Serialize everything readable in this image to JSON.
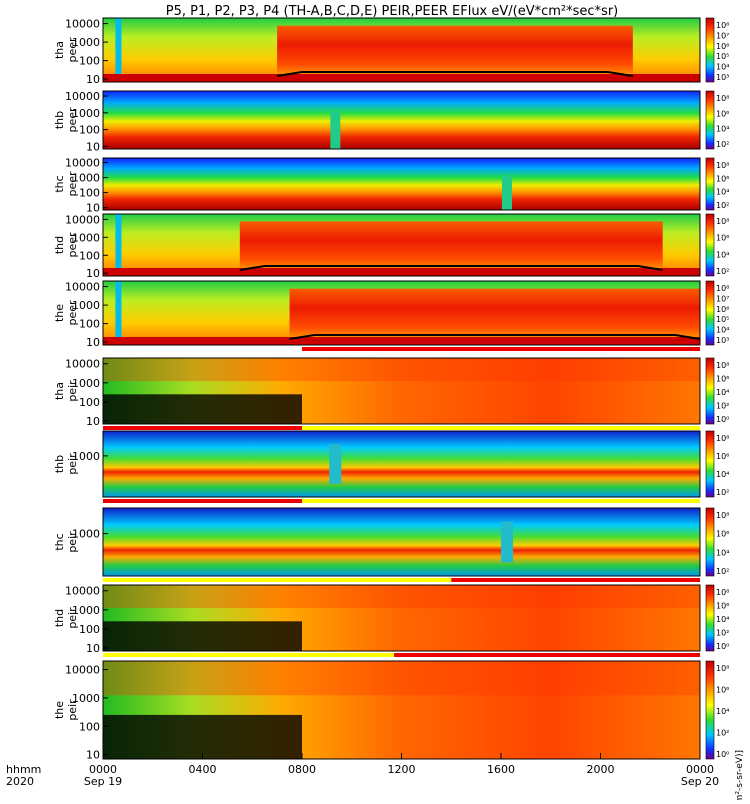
{
  "title": "P5, P1, P2, P3, P4 (TH-A,B,C,D,E) PEIR,PEER EFlux eV/(eV*cm²*sec*sr)",
  "colorbar_unit_label": "[eV/(cm²-s-sr-eV)]",
  "time_axis": {
    "row_label_1": "hhmm",
    "row_label_2": "2020",
    "ticks": [
      {
        "hour": 0,
        "label": "0000",
        "date": "Sep 19"
      },
      {
        "hour": 4,
        "label": "0400",
        "date": ""
      },
      {
        "hour": 8,
        "label": "0800",
        "date": ""
      },
      {
        "hour": 12,
        "label": "1200",
        "date": ""
      },
      {
        "hour": 16,
        "label": "1600",
        "date": ""
      },
      {
        "hour": 20,
        "label": "2000",
        "date": ""
      },
      {
        "hour": 24,
        "label": "0000",
        "date": "Sep 20"
      }
    ],
    "range_hours": [
      0,
      24
    ]
  },
  "chart_data": {
    "type": "heatmap",
    "title": "P5, P1, P2, P3, P4 (TH-A,B,C,D,E) PEIR,PEER EFlux eV/(eV*cm²*sec*sr)",
    "x_unit": "hours since 2020-09-19 00:00 UT",
    "xlim": [
      0,
      24
    ],
    "color_scale": "log",
    "colorbar_label": "[eV/(cm²-s-sr-eV)]",
    "panels": [
      {
        "label_1": "tha",
        "label_2": "peer",
        "yscale": "log",
        "ylim": [
          7,
          20000
        ],
        "yticks": [
          "10",
          "100",
          "1000",
          "10000"
        ],
        "cbar_ticks": [
          "10⁸",
          "10⁷",
          "10⁶",
          "10⁵",
          "10⁴",
          "10³"
        ],
        "pattern": "plasma_sheet_electrons",
        "bright_window_hours": [
          7,
          21.3
        ],
        "mode_bar": "none"
      },
      {
        "label_1": "thb",
        "label_2": "peer",
        "yscale": "log",
        "ylim": [
          7,
          20000
        ],
        "yticks": [
          "10",
          "100",
          "1000",
          "10000"
        ],
        "cbar_ticks": [
          "10⁸",
          "10⁶",
          "10⁴",
          "10²"
        ],
        "pattern": "solar_wind_electrons",
        "notch_hour": 9.3,
        "mode_bar": "none"
      },
      {
        "label_1": "thc",
        "label_2": "peer",
        "yscale": "log",
        "ylim": [
          7,
          20000
        ],
        "yticks": [
          "10",
          "100",
          "1000",
          "10000"
        ],
        "cbar_ticks": [
          "10⁸",
          "10⁶",
          "10⁴",
          "10²"
        ],
        "pattern": "solar_wind_electrons",
        "notch_hour": 16.2,
        "mode_bar": "none"
      },
      {
        "label_1": "thd",
        "label_2": "peer",
        "yscale": "log",
        "ylim": [
          7,
          20000
        ],
        "yticks": [
          "10",
          "100",
          "1000",
          "10000"
        ],
        "cbar_ticks": [
          "10⁸",
          "10⁶",
          "10⁴",
          "10²"
        ],
        "pattern": "plasma_sheet_electrons",
        "bright_window_hours": [
          5.5,
          22.5
        ],
        "mode_bar": "none"
      },
      {
        "label_1": "the",
        "label_2": "peer",
        "yscale": "log",
        "ylim": [
          7,
          20000
        ],
        "yticks": [
          "10",
          "100",
          "1000",
          "10000"
        ],
        "cbar_ticks": [
          "10⁸",
          "10⁷",
          "10⁶",
          "10⁵",
          "10⁴",
          "10³"
        ],
        "pattern": "plasma_sheet_electrons",
        "bright_window_hours": [
          7.5,
          24
        ],
        "mode_bar": "red_from_8"
      },
      {
        "label_1": "tha",
        "label_2": "peir",
        "yscale": "log",
        "ylim": [
          7,
          20000
        ],
        "yticks": [
          "10",
          "100",
          "1000",
          "10000"
        ],
        "cbar_ticks": [
          "10⁸",
          "10⁶",
          "10⁴",
          "10²",
          "10⁰"
        ],
        "pattern": "plasma_sheet_ions",
        "mode_bar": "red_0_to_8_yellow_after"
      },
      {
        "label_1": "thb",
        "label_2": "peir",
        "yscale": "log",
        "ylim": [
          7,
          20000
        ],
        "yticks": [
          "1000"
        ],
        "cbar_ticks": [
          "10⁸",
          "10⁶",
          "10⁴",
          "10²"
        ],
        "pattern": "solar_wind_ions",
        "notch_hour": 9.3,
        "mode_bar": "red_0_to_8_yellow_after"
      },
      {
        "label_1": "thc",
        "label_2": "peir",
        "yscale": "log",
        "ylim": [
          7,
          20000
        ],
        "yticks": [
          "1000"
        ],
        "cbar_ticks": [
          "10⁸",
          "10⁶",
          "10⁴",
          "10²"
        ],
        "pattern": "solar_wind_ions",
        "notch_hour": 16.2,
        "mode_bar": "yellow_red_from_14"
      },
      {
        "label_1": "thd",
        "label_2": "peir",
        "yscale": "log",
        "ylim": [
          7,
          20000
        ],
        "yticks": [
          "10",
          "100",
          "1000",
          "10000"
        ],
        "cbar_ticks": [
          "10⁸",
          "10⁶",
          "10⁴",
          "10²",
          "10⁰"
        ],
        "pattern": "plasma_sheet_ions",
        "mode_bar": "yellow_red_from_11.7"
      },
      {
        "label_1": "the",
        "label_2": "peir",
        "yscale": "log",
        "ylim": [
          7,
          20000
        ],
        "yticks": [
          "10",
          "100",
          "1000",
          "10000"
        ],
        "cbar_ticks": [
          "10⁸",
          "10⁶",
          "10⁴",
          "10²",
          "10⁰"
        ],
        "pattern": "plasma_sheet_ions",
        "mode_bar": "none"
      }
    ]
  }
}
